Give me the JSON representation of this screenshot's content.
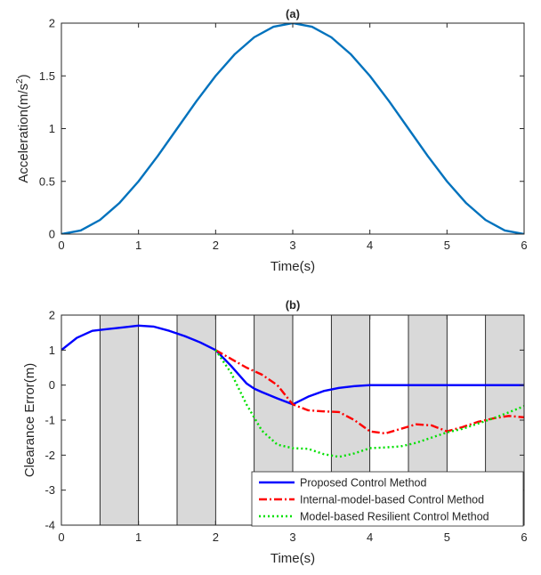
{
  "chart_data": [
    {
      "panel": "a",
      "type": "line",
      "title": "(a)",
      "xlabel": "Time(s)",
      "ylabel": "Acceleration(m/s",
      "ylabel_sup": "2",
      "ylabel_close": ")",
      "xlim": [
        0,
        6
      ],
      "ylim": [
        0,
        2
      ],
      "xticks": [
        0,
        1,
        2,
        3,
        4,
        5,
        6
      ],
      "yticks": [
        0,
        0.5,
        1,
        1.5,
        2
      ],
      "ytick_labels": [
        "0",
        "0.5",
        "1",
        "1.5",
        "2"
      ],
      "grid": false,
      "series": [
        {
          "color": "#0072bd",
          "style": "solid",
          "x": [
            0,
            0.25,
            0.5,
            0.75,
            1,
            1.25,
            1.5,
            1.75,
            2,
            2.25,
            2.5,
            2.75,
            3,
            3.25,
            3.5,
            3.75,
            4,
            4.25,
            4.5,
            4.75,
            5,
            5.25,
            5.5,
            5.75,
            6
          ],
          "y": [
            0,
            0.034,
            0.134,
            0.293,
            0.5,
            0.741,
            1.0,
            1.259,
            1.5,
            1.707,
            1.866,
            1.966,
            2.0,
            1.966,
            1.866,
            1.707,
            1.5,
            1.259,
            1.0,
            0.741,
            0.5,
            0.293,
            0.134,
            0.034,
            0
          ]
        }
      ]
    },
    {
      "panel": "b",
      "type": "line",
      "title": "(b)",
      "xlabel": "Time(s)",
      "ylabel": "Clearance Error(m)",
      "xlim": [
        0,
        6
      ],
      "ylim": [
        -4,
        2
      ],
      "xticks": [
        0,
        1,
        2,
        3,
        4,
        5,
        6
      ],
      "yticks": [
        -4,
        -3,
        -2,
        -1,
        0,
        1,
        2
      ],
      "ytick_labels": [
        "-4",
        "-3",
        "-2",
        "-1",
        "0",
        "1",
        "2"
      ],
      "grid": false,
      "shaded_intervals": [
        [
          0.5,
          1
        ],
        [
          1.5,
          2
        ],
        [
          2.5,
          3
        ],
        [
          3.5,
          4
        ],
        [
          4.5,
          5
        ],
        [
          5.5,
          6
        ]
      ],
      "shade_color": "#d9d9d9",
      "legend_position": "bottom-right",
      "series": [
        {
          "name": "Proposed Control Method",
          "color": "#0000ff",
          "style": "solid",
          "x": [
            0,
            0.2,
            0.4,
            0.6,
            0.8,
            1.0,
            1.2,
            1.4,
            1.6,
            1.8,
            2.0,
            2.2,
            2.4,
            2.5,
            2.6,
            2.8,
            3.0,
            3.2,
            3.4,
            3.6,
            3.8,
            4.0,
            4.5,
            5.0,
            5.5,
            6.0
          ],
          "y": [
            1.0,
            1.35,
            1.55,
            1.6,
            1.65,
            1.7,
            1.67,
            1.55,
            1.4,
            1.22,
            1.0,
            0.55,
            0.05,
            -0.1,
            -0.2,
            -0.38,
            -0.55,
            -0.33,
            -0.17,
            -0.08,
            -0.03,
            0.0,
            0.0,
            0.0,
            0.0,
            0.0
          ]
        },
        {
          "name": "Internal-model-based Control Method",
          "color": "#ff0000",
          "style": "dashdot",
          "x": [
            2.0,
            2.2,
            2.4,
            2.6,
            2.8,
            3.0,
            3.2,
            3.4,
            3.6,
            3.8,
            4.0,
            4.2,
            4.4,
            4.6,
            4.8,
            5.0,
            5.2,
            5.4,
            5.6,
            5.8,
            6.0
          ],
          "y": [
            1.0,
            0.75,
            0.5,
            0.3,
            0.0,
            -0.55,
            -0.72,
            -0.75,
            -0.77,
            -1.0,
            -1.32,
            -1.38,
            -1.25,
            -1.12,
            -1.15,
            -1.32,
            -1.2,
            -1.05,
            -0.95,
            -0.88,
            -0.92
          ]
        },
        {
          "name": "Model-based Resilient Control Method",
          "color": "#00e000",
          "style": "dotted",
          "x": [
            2.0,
            2.2,
            2.4,
            2.6,
            2.8,
            3.0,
            3.2,
            3.4,
            3.6,
            3.8,
            4.0,
            4.2,
            4.4,
            4.6,
            4.8,
            5.0,
            5.2,
            5.4,
            5.6,
            5.8,
            6.0
          ],
          "y": [
            1.0,
            0.35,
            -0.55,
            -1.3,
            -1.7,
            -1.8,
            -1.82,
            -1.97,
            -2.05,
            -1.95,
            -1.8,
            -1.78,
            -1.75,
            -1.65,
            -1.5,
            -1.35,
            -1.25,
            -1.1,
            -0.95,
            -0.78,
            -0.6
          ]
        }
      ]
    }
  ]
}
